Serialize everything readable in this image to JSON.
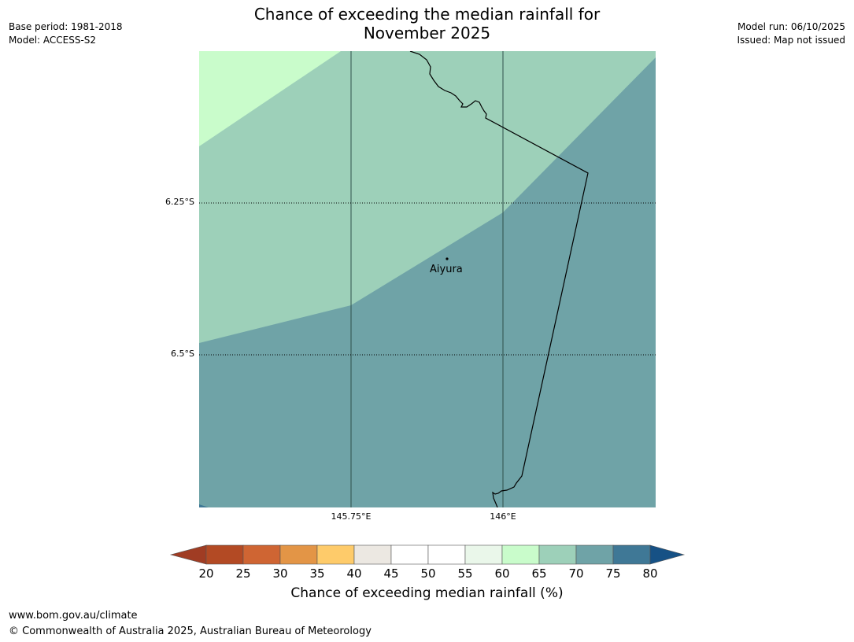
{
  "title": {
    "line1": "Chance of exceeding the median rainfall for",
    "line2": "November 2025"
  },
  "meta_left": {
    "base_period": "Base period: 1981-2018",
    "model": "Model: ACCESS-S2"
  },
  "meta_right": {
    "model_run": "Model run: 06/10/2025",
    "issued": "Issued: Map not issued"
  },
  "map": {
    "lat_labels": [
      "6.25°S",
      "6.5°S"
    ],
    "lon_labels": [
      "145.75°E",
      "146°E"
    ],
    "place": {
      "name": "Aiyura"
    }
  },
  "colorbar": {
    "ticks": [
      "20",
      "25",
      "30",
      "35",
      "40",
      "45",
      "50",
      "55",
      "60",
      "65",
      "70",
      "75",
      "80"
    ],
    "colors": [
      "#a03c23",
      "#b34a24",
      "#cf6533",
      "#e39546",
      "#fecb6a",
      "#ece8e2",
      "#ffffff",
      "#ffffff",
      "#eaf7ea",
      "#c9fccb",
      "#9dd0b9",
      "#6fa3a7",
      "#3f7896",
      "#165185"
    ],
    "label": "Chance of exceeding median rainfall (%)"
  },
  "footer": {
    "url": "www.bom.gov.au/climate",
    "copyright": "© Commonwealth of Australia 2025, Australian Bureau of Meteorology"
  }
}
